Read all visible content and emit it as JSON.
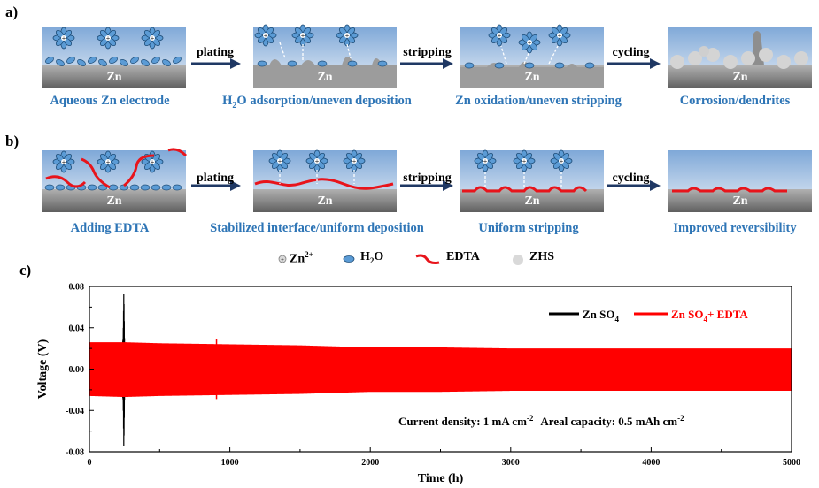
{
  "panels": {
    "a": "a)",
    "b": "b)",
    "c": "c)"
  },
  "electrode_label": "Zn",
  "row_a": {
    "captions": [
      "Aqueous Zn electrode",
      "H",
      "2",
      "O adsorption/uneven deposition",
      "Zn oxidation/uneven stripping",
      "Corrosion/dendrites"
    ],
    "arrows": [
      "plating",
      "stripping",
      "cycling"
    ]
  },
  "row_b": {
    "captions": [
      "Adding EDTA",
      "Stabilized interface/uniform deposition",
      "Uniform stripping",
      "Improved reversibility"
    ],
    "arrows": [
      "plating",
      "stripping",
      "cycling"
    ]
  },
  "legend": {
    "zn_ion": "Zn",
    "zn_ion_sup": "2+",
    "h2o_h": "H",
    "h2o_sub": "2",
    "h2o_o": "O",
    "edta": "EDTA",
    "zhs": "ZHS"
  },
  "colors": {
    "electrolyte_top": "#7fa8d8",
    "electrode": "#8a8a8a",
    "edta": "#e8141b",
    "caption": "#2e75b6",
    "arrow": "#1f3864",
    "series_znso4": "#000000",
    "series_edta": "#ff0000"
  },
  "chart_data": {
    "type": "line",
    "xlabel": "Time (h)",
    "ylabel": "Voltage  (V)",
    "xlim": [
      0,
      5000
    ],
    "ylim": [
      -0.08,
      0.08
    ],
    "xticks": [
      "0",
      "1000",
      "2000",
      "3000",
      "4000",
      "5000"
    ],
    "yticks": [
      "0.08",
      "0.04",
      "0.00",
      "-0.04",
      "-0.08"
    ],
    "series": [
      {
        "name": "ZnSO4",
        "name_main": "Zn SO",
        "name_sub": "4",
        "color": "#000000",
        "x": [
          0,
          100,
          200,
          230,
          240,
          245,
          250
        ],
        "upper": [
          0.019,
          0.019,
          0.02,
          0.02,
          0.03,
          0.076,
          0.03
        ],
        "lower": [
          -0.02,
          -0.02,
          -0.021,
          -0.022,
          -0.03,
          -0.078,
          -0.03
        ]
      },
      {
        "name": "ZnSO4+ EDTA",
        "name_main": "Zn SO",
        "name_sub": "4",
        "name_tail": "+ EDTA",
        "color": "#ff0000",
        "x": [
          0,
          250,
          500,
          1000,
          1500,
          2000,
          2500,
          3000,
          3500,
          4000,
          4500,
          5000
        ],
        "upper": [
          0.026,
          0.026,
          0.025,
          0.024,
          0.023,
          0.021,
          0.021,
          0.02,
          0.02,
          0.02,
          0.02,
          0.02
        ],
        "lower": [
          -0.026,
          -0.027,
          -0.026,
          -0.025,
          -0.024,
          -0.022,
          -0.022,
          -0.021,
          -0.021,
          -0.021,
          -0.021,
          -0.021
        ]
      }
    ],
    "annotation": {
      "cd_text": "Current density: 1 mA cm",
      "cd_sup": "-2",
      "ac_text": "Areal capacity: 0.5 mAh cm",
      "ac_sup": "-2"
    },
    "legend_position": "top-right"
  }
}
